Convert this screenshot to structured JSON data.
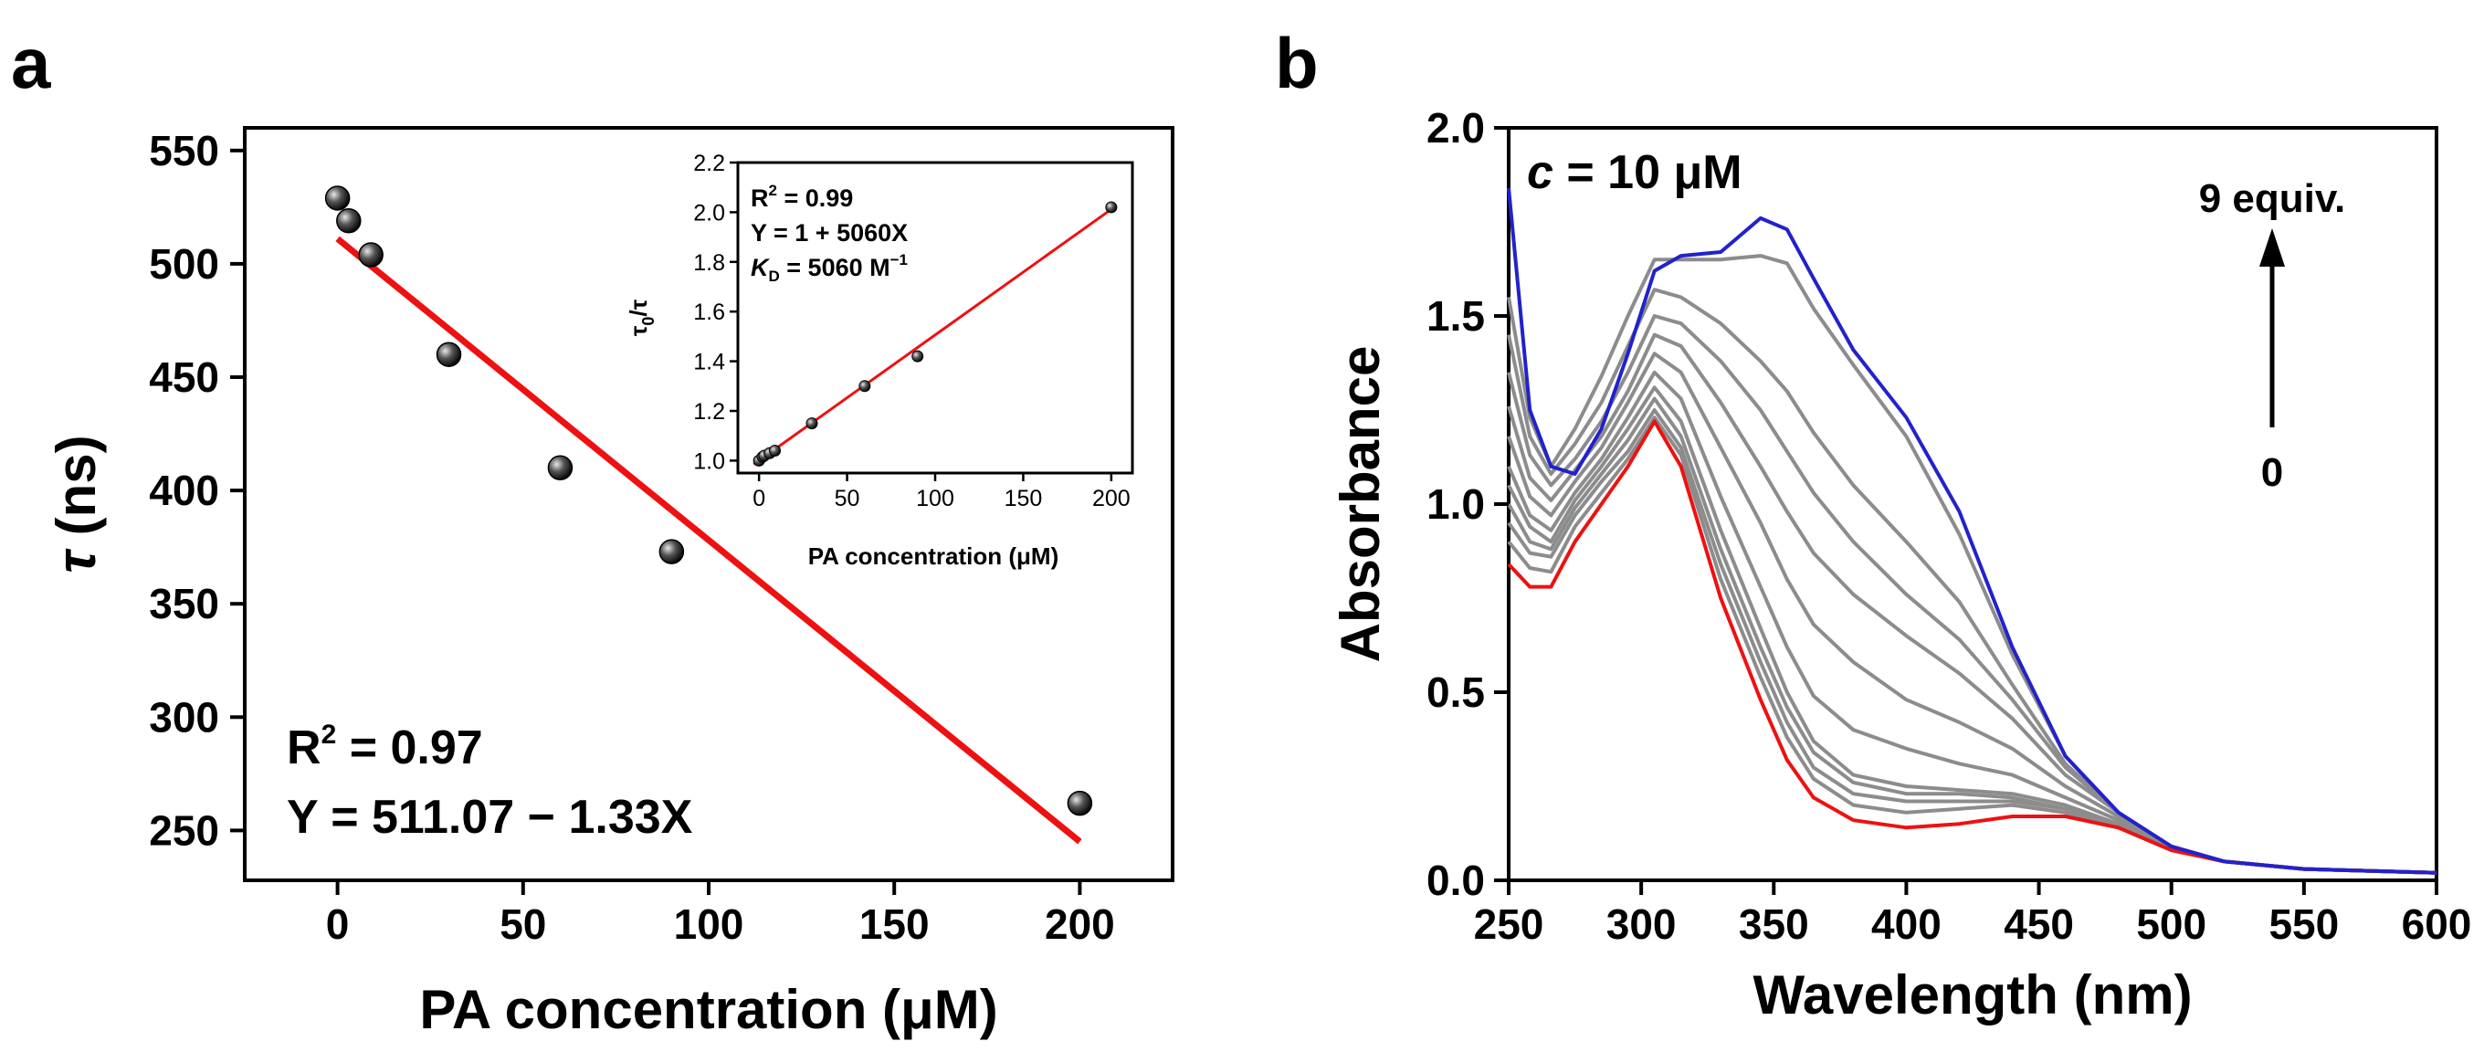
{
  "panel_labels": {
    "a": "a",
    "b": "b"
  },
  "chart_data": [
    {
      "type": "scatter",
      "title": "",
      "xlabel": "PA concentration (μM)",
      "ylabel_symbol": "τ",
      "ylabel_unit": "(ns)",
      "xlim": [
        -25,
        225
      ],
      "ylim": [
        228,
        560
      ],
      "xticks": [
        0,
        50,
        100,
        150,
        200
      ],
      "yticks": [
        250,
        300,
        350,
        400,
        450,
        500,
        550
      ],
      "series": [
        {
          "name": "data",
          "x": [
            0,
            3,
            9,
            30,
            60,
            90,
            200
          ],
          "y": [
            529,
            519,
            504,
            460,
            410,
            373,
            262
          ],
          "color": "#111111"
        },
        {
          "name": "fit",
          "x": [
            0,
            200
          ],
          "y": [
            511.07,
            245.07
          ],
          "color": "#ee1111"
        }
      ],
      "annotations": {
        "r2_label": "R",
        "r2_sup": "2",
        "r2_value": " = 0.97",
        "equation": "Y = 511.07 − 1.33X"
      },
      "inset": {
        "type": "scatter",
        "xlabel": "PA concentration (μM)",
        "ylabel": "τ0/τ",
        "ylabel_main": "τ",
        "ylabel_sub": "0",
        "ylabel_tail": "/τ",
        "xlim": [
          -12,
          212
        ],
        "ylim": [
          0.95,
          2.2
        ],
        "xticks": [
          0,
          50,
          100,
          150,
          200
        ],
        "yticks": [
          "1.0",
          "1.2",
          "1.4",
          "1.6",
          "1.8",
          "2.0",
          "2.2"
        ],
        "series": [
          {
            "name": "data",
            "x": [
              0,
              2,
              3,
              6,
              9,
              30,
              60,
              90,
              200
            ],
            "y": [
              1.0,
              1.015,
              1.02,
              1.03,
              1.04,
              1.15,
              1.3,
              1.42,
              2.02
            ]
          },
          {
            "name": "fit",
            "x": [
              -3,
              203
            ],
            "y": [
              0.985,
              2.027
            ]
          }
        ],
        "annotations": {
          "r2_label": "R",
          "r2_sup": "2",
          "r2_value": " = 0.99",
          "equation": "Y = 1 + 5060X",
          "kd_symbol": "K",
          "kd_sub": "D",
          "kd_value": " = 5060 M",
          "kd_unit_sup": "−1"
        }
      }
    },
    {
      "type": "line",
      "title": "",
      "xlabel": "Wavelength (nm)",
      "ylabel": "Absorbance",
      "xlim": [
        250,
        600
      ],
      "ylim": [
        0,
        2.0
      ],
      "xticks": [
        250,
        300,
        350,
        400,
        450,
        500,
        550,
        600
      ],
      "yticks": [
        "0.0",
        "0.5",
        "1.0",
        "1.5",
        "2.0"
      ],
      "concentration_prefix": "c",
      "concentration_value": " = 10 μM",
      "arrow_top_label": "9 equiv.",
      "arrow_bottom_label": "0",
      "colors": {
        "start": "#ee1111",
        "end": "#2222cc",
        "intermediate": "#8c8c8c"
      },
      "x": [
        250,
        258,
        266,
        275,
        285,
        295,
        305,
        315,
        330,
        345,
        355,
        365,
        380,
        400,
        420,
        440,
        460,
        480,
        500,
        520,
        550,
        600
      ],
      "series": [
        {
          "name": "0 equiv",
          "values": [
            0.84,
            0.78,
            0.78,
            0.9,
            1.0,
            1.1,
            1.22,
            1.1,
            0.75,
            0.48,
            0.32,
            0.22,
            0.16,
            0.14,
            0.15,
            0.17,
            0.17,
            0.14,
            0.08,
            0.05,
            0.03,
            0.02
          ]
        },
        {
          "name": "intermediate",
          "values": [
            0.9,
            0.83,
            0.82,
            0.94,
            1.03,
            1.12,
            1.23,
            1.13,
            0.8,
            0.54,
            0.38,
            0.27,
            0.2,
            0.18,
            0.19,
            0.2,
            0.18,
            0.14,
            0.08,
            0.05,
            0.03,
            0.02
          ]
        },
        {
          "name": "intermediate",
          "values": [
            0.95,
            0.87,
            0.86,
            0.97,
            1.06,
            1.14,
            1.25,
            1.15,
            0.84,
            0.58,
            0.42,
            0.3,
            0.23,
            0.21,
            0.21,
            0.21,
            0.19,
            0.15,
            0.08,
            0.05,
            0.03,
            0.02
          ]
        },
        {
          "name": "intermediate",
          "values": [
            1.0,
            0.9,
            0.88,
            0.99,
            1.08,
            1.17,
            1.28,
            1.18,
            0.88,
            0.62,
            0.46,
            0.34,
            0.26,
            0.23,
            0.23,
            0.22,
            0.19,
            0.15,
            0.09,
            0.05,
            0.03,
            0.02
          ]
        },
        {
          "name": "intermediate",
          "values": [
            1.05,
            0.94,
            0.9,
            1.01,
            1.1,
            1.2,
            1.31,
            1.22,
            0.93,
            0.67,
            0.5,
            0.37,
            0.28,
            0.25,
            0.24,
            0.23,
            0.2,
            0.15,
            0.09,
            0.05,
            0.03,
            0.02
          ]
        },
        {
          "name": "intermediate",
          "values": [
            1.1,
            0.97,
            0.93,
            1.03,
            1.12,
            1.23,
            1.35,
            1.28,
            1.02,
            0.78,
            0.62,
            0.49,
            0.4,
            0.35,
            0.31,
            0.28,
            0.22,
            0.16,
            0.09,
            0.05,
            0.03,
            0.02
          ]
        },
        {
          "name": "intermediate",
          "values": [
            1.18,
            1.02,
            0.97,
            1.06,
            1.15,
            1.27,
            1.4,
            1.35,
            1.15,
            0.95,
            0.8,
            0.68,
            0.58,
            0.48,
            0.42,
            0.35,
            0.25,
            0.17,
            0.09,
            0.05,
            0.03,
            0.02
          ]
        },
        {
          "name": "intermediate",
          "values": [
            1.26,
            1.07,
            1.01,
            1.09,
            1.18,
            1.3,
            1.45,
            1.42,
            1.27,
            1.1,
            0.98,
            0.87,
            0.76,
            0.65,
            0.55,
            0.43,
            0.28,
            0.18,
            0.09,
            0.05,
            0.03,
            0.02
          ]
        },
        {
          "name": "intermediate",
          "values": [
            1.35,
            1.13,
            1.05,
            1.12,
            1.22,
            1.35,
            1.5,
            1.48,
            1.38,
            1.25,
            1.14,
            1.03,
            0.9,
            0.76,
            0.64,
            0.48,
            0.3,
            0.18,
            0.09,
            0.05,
            0.03,
            0.02
          ]
        },
        {
          "name": "intermediate",
          "values": [
            1.45,
            1.18,
            1.08,
            1.16,
            1.27,
            1.42,
            1.57,
            1.55,
            1.48,
            1.38,
            1.3,
            1.19,
            1.05,
            0.9,
            0.74,
            0.52,
            0.31,
            0.18,
            0.09,
            0.05,
            0.03,
            0.02
          ]
        },
        {
          "name": "intermediate",
          "values": [
            1.55,
            1.23,
            1.1,
            1.2,
            1.34,
            1.5,
            1.65,
            1.65,
            1.65,
            1.66,
            1.64,
            1.52,
            1.37,
            1.18,
            0.92,
            0.6,
            0.33,
            0.18,
            0.09,
            0.05,
            0.03,
            0.02
          ]
        },
        {
          "name": "9 equiv",
          "values": [
            1.84,
            1.25,
            1.1,
            1.08,
            1.2,
            1.4,
            1.62,
            1.66,
            1.67,
            1.76,
            1.73,
            1.6,
            1.41,
            1.23,
            0.98,
            0.62,
            0.33,
            0.18,
            0.09,
            0.05,
            0.03,
            0.02
          ]
        }
      ]
    }
  ]
}
